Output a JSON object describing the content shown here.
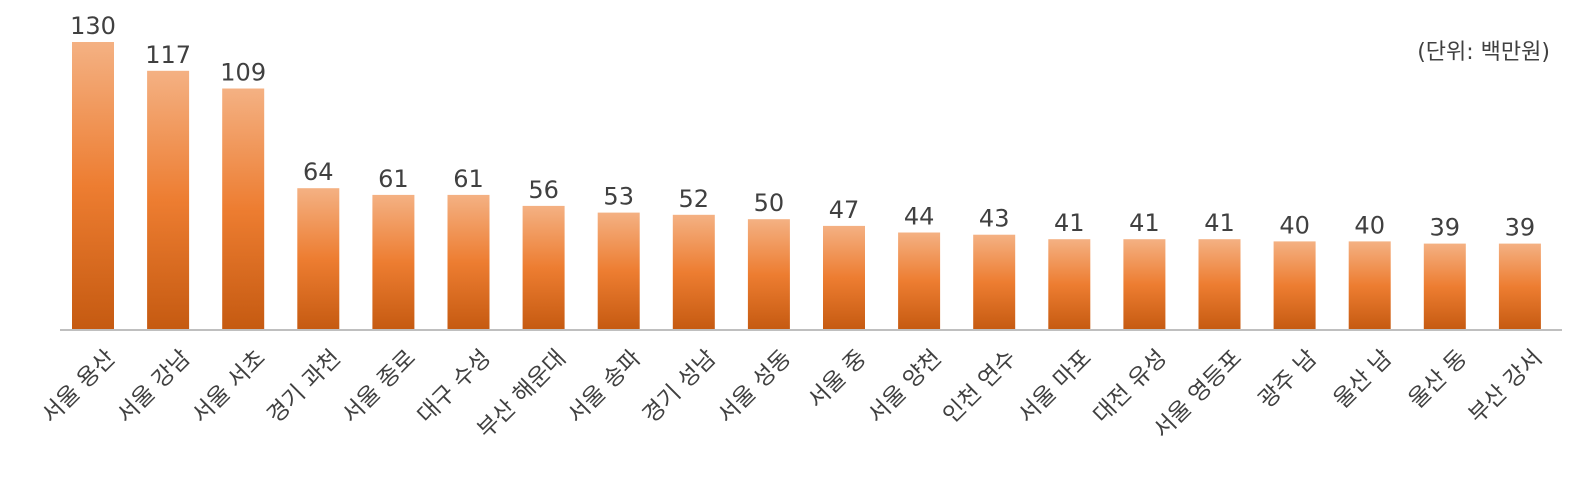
{
  "unit_label": "(단위: 백만원)",
  "colors": {
    "bar_top": "#f4b183",
    "bar_mid": "#ed7d31",
    "bar_bottom": "#c55a11",
    "axis": "#bfbfbf",
    "text": "#404040"
  },
  "chart_data": {
    "type": "bar",
    "categories": [
      "서울 용산",
      "서울 강남",
      "서울 서초",
      "경기 과천",
      "서울 종로",
      "대구 수성",
      "부산 해운대",
      "서울 송파",
      "경기 성남",
      "서울 성동",
      "서울 중",
      "서울 양천",
      "인천 연수",
      "서울 마포",
      "대전 유성",
      "서울 영등포",
      "광주 남",
      "울산 남",
      "울산 동",
      "부산 강서"
    ],
    "values": [
      130,
      117,
      109,
      64,
      61,
      61,
      56,
      53,
      52,
      50,
      47,
      44,
      43,
      41,
      41,
      41,
      40,
      40,
      39,
      39
    ],
    "title": "",
    "xlabel": "",
    "ylabel": "",
    "ylim": [
      0,
      130
    ],
    "grid": false,
    "legend": "none",
    "data_labels": true
  }
}
